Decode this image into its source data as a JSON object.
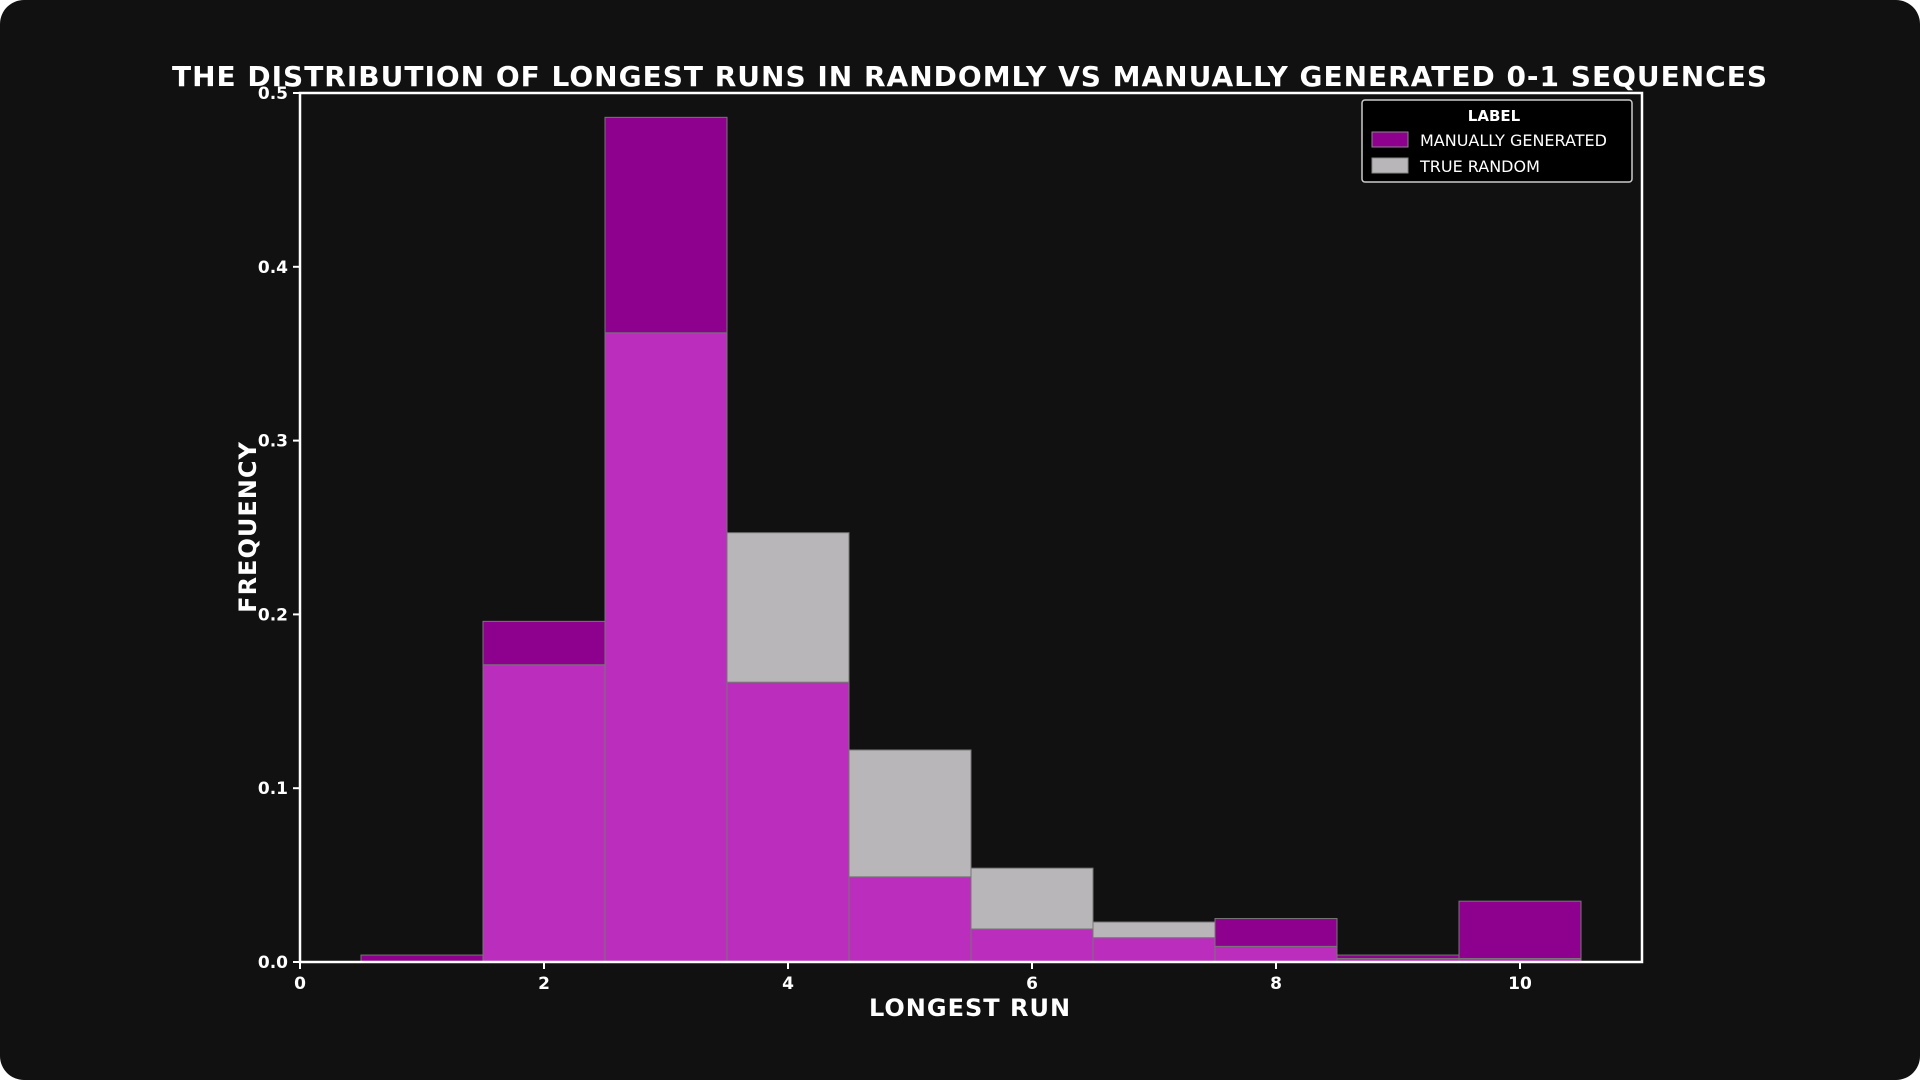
{
  "colors": {
    "background": "#111111",
    "manual": "#8e008e",
    "random": "#b8b6b9",
    "overlap": "#bb2dbd",
    "axis": "#ffffff"
  },
  "chart_data": {
    "type": "bar",
    "title": "THE DISTRIBUTION OF LONGEST RUNS IN RANDOMLY VS MANUALLY GENERATED 0-1 SEQUENCES",
    "xlabel": "LONGEST RUN",
    "ylabel": "FREQUENCY",
    "xlim": [
      0,
      11
    ],
    "ylim": [
      0,
      0.5
    ],
    "xticks": [
      "0",
      "2",
      "4",
      "6",
      "8",
      "10"
    ],
    "xtick_values": [
      0,
      2,
      4,
      6,
      8,
      10
    ],
    "yticks": [
      "0.0",
      "0.1",
      "0.2",
      "0.3",
      "0.4",
      "0.5"
    ],
    "ytick_values": [
      0,
      0.1,
      0.2,
      0.3,
      0.4,
      0.5
    ],
    "categories": [
      1,
      2,
      3,
      4,
      5,
      6,
      7,
      8,
      9,
      10
    ],
    "series": [
      {
        "name": "MANUALLY GENERATED",
        "values": [
          0.004,
          0.196,
          0.486,
          0.161,
          0.049,
          0.019,
          0.014,
          0.025,
          0.004,
          0.035
        ]
      },
      {
        "name": "TRUE RANDOM",
        "values": [
          0.0,
          0.171,
          0.362,
          0.247,
          0.122,
          0.054,
          0.023,
          0.009,
          0.002,
          0.002
        ]
      }
    ],
    "legend": {
      "title": "LABEL",
      "position": "top-right"
    },
    "grid": false
  }
}
